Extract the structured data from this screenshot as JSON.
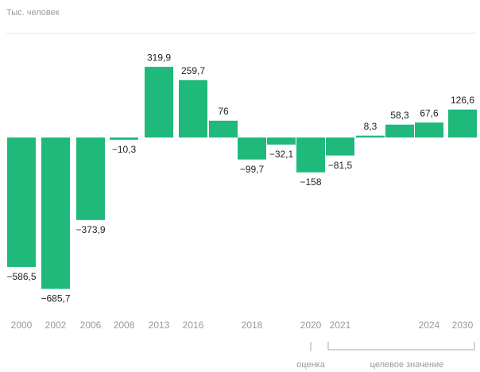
{
  "chart_data": {
    "type": "bar",
    "subtitle": "Тыс. человек",
    "categories": [
      "2000",
      "2002",
      "2006",
      "2008",
      "2013",
      "2016",
      null,
      "2018",
      null,
      "2020",
      "2021",
      null,
      null,
      "2024",
      "2030"
    ],
    "values": [
      -586.5,
      -685.7,
      -373.9,
      -10.3,
      319.9,
      259.7,
      76,
      -99.7,
      -32.1,
      -158,
      -81.5,
      8.3,
      58.3,
      67.6,
      126.6
    ],
    "value_labels": [
      "−586,5",
      "−685,7",
      "−373,9",
      "−10,3",
      "319,9",
      "259,7",
      "76",
      "−99,7",
      "−32,1",
      "−158",
      "−81,5",
      "8,3",
      "58,3",
      "67,6",
      "126,6"
    ],
    "color": "#1fb97b",
    "ylim": [
      -720,
      340
    ],
    "annotations": [
      "оценка",
      "целевое значение"
    ]
  }
}
